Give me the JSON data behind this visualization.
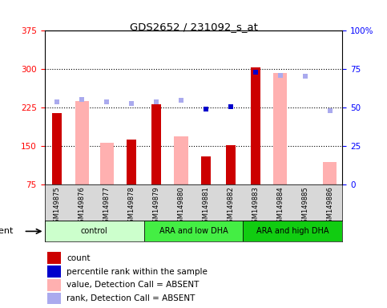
{
  "title": "GDS2652 / 231092_s_at",
  "samples": [
    "GSM149875",
    "GSM149876",
    "GSM149877",
    "GSM149878",
    "GSM149879",
    "GSM149880",
    "GSM149881",
    "GSM149882",
    "GSM149883",
    "GSM149884",
    "GSM149885",
    "GSM149886"
  ],
  "groups": [
    {
      "label": "control",
      "start": 0,
      "end": 4,
      "color": "#ccffcc"
    },
    {
      "label": "ARA and low DHA",
      "start": 4,
      "end": 8,
      "color": "#44ee44"
    },
    {
      "label": "ARA and high DHA",
      "start": 8,
      "end": 12,
      "color": "#22bb22"
    }
  ],
  "count_values": [
    215,
    null,
    null,
    163,
    232,
    null,
    130,
    152,
    304,
    null,
    null,
    null
  ],
  "absent_value_bars": [
    null,
    238,
    157,
    null,
    null,
    170,
    null,
    null,
    null,
    293,
    null,
    120
  ],
  "percentile_rank_dots": [
    null,
    null,
    null,
    null,
    null,
    null,
    222,
    227,
    294,
    null,
    null,
    null
  ],
  "absent_rank_dots": [
    237,
    241,
    237,
    234,
    237,
    240,
    null,
    null,
    null,
    288,
    287,
    220
  ],
  "ylim_left": [
    75,
    375
  ],
  "yticks_left": [
    75,
    150,
    225,
    300,
    375
  ],
  "yticks_right": [
    0,
    25,
    50,
    75,
    100
  ],
  "right_tick_labels": [
    "0",
    "25",
    "50",
    "75",
    "100%"
  ],
  "count_color": "#cc0000",
  "absent_bar_color": "#ffb0b0",
  "percentile_color": "#0000cc",
  "absent_rank_color": "#aaaaee",
  "legend": [
    {
      "color": "#cc0000",
      "type": "square",
      "label": "count"
    },
    {
      "color": "#0000cc",
      "type": "square",
      "label": "percentile rank within the sample"
    },
    {
      "color": "#ffb0b0",
      "type": "square",
      "label": "value, Detection Call = ABSENT"
    },
    {
      "color": "#aaaaee",
      "type": "square",
      "label": "rank, Detection Call = ABSENT"
    }
  ]
}
